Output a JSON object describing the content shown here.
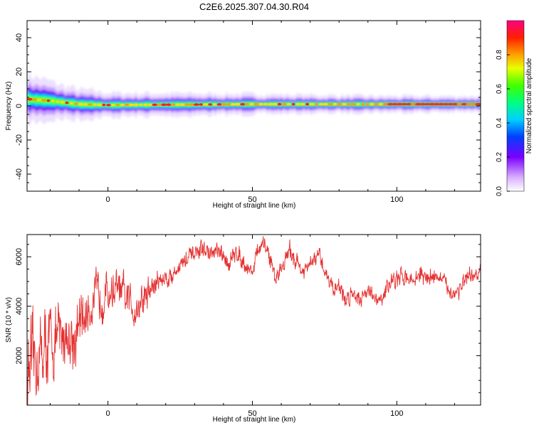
{
  "colors": {
    "snr_line": "#e53030",
    "frame": "#000000",
    "background": "#ffffff"
  },
  "chart_data": [
    {
      "type": "heatmap",
      "title": "C2E6.2025.307.04.30.R04",
      "xlabel": "Height of straight line (km)",
      "ylabel": "Frequency (Hz)",
      "xlim": [
        -28,
        129
      ],
      "ylim": [
        -50,
        50
      ],
      "xticks": [
        0,
        50,
        100
      ],
      "yticks": [
        -40,
        -20,
        0,
        20,
        40
      ],
      "colorbar": {
        "label": "Normalized spectral amplitude",
        "range": [
          0,
          1
        ],
        "ticks": [
          "0.0",
          "0.2",
          "0.4",
          "0.6",
          "0.8"
        ]
      },
      "band": {
        "description": "spectral energy concentrated near 0 Hz",
        "center_hz": [
          [
            -28,
            4
          ],
          [
            -20,
            3
          ],
          [
            -10,
            1
          ],
          [
            0,
            0.5
          ],
          [
            50,
            1
          ],
          [
            100,
            1
          ],
          [
            129,
            1
          ]
        ],
        "halfwidth_hz": [
          [
            -28,
            6
          ],
          [
            -15,
            4
          ],
          [
            0,
            3
          ],
          [
            50,
            2.5
          ],
          [
            95,
            2
          ],
          [
            129,
            2
          ]
        ]
      }
    },
    {
      "type": "line",
      "title": "",
      "xlabel": "Height of straight line (km)",
      "ylabel": "SNR (10 * v/v)",
      "xlim": [
        -28,
        129
      ],
      "ylim": [
        0,
        6900
      ],
      "xticks": [
        0,
        50,
        100
      ],
      "yticks": [
        2000,
        4000,
        6000
      ],
      "series": [
        {
          "name": "SNR",
          "trend_x": [
            -28,
            -25,
            -22,
            -18,
            -15,
            -12,
            -10,
            -7,
            -5,
            -2,
            0,
            3,
            5,
            8,
            10,
            12,
            15,
            18,
            22,
            25,
            30,
            33,
            36,
            38,
            40,
            42,
            45,
            48,
            50,
            52,
            55,
            58,
            60,
            63,
            65,
            68,
            70,
            73,
            75,
            78,
            80,
            82,
            85,
            88,
            90,
            93,
            95,
            98,
            100,
            103,
            105,
            108,
            110,
            113,
            115,
            118,
            120,
            122,
            125,
            129
          ],
          "trend_y": [
            1200,
            1800,
            2300,
            2600,
            2900,
            2700,
            3100,
            3800,
            4300,
            4500,
            4500,
            4700,
            4400,
            4100,
            3900,
            4300,
            4700,
            5100,
            5200,
            5700,
            6100,
            6300,
            6100,
            6200,
            5900,
            5800,
            6200,
            5600,
            5400,
            6300,
            6400,
            5100,
            5600,
            6200,
            5900,
            5300,
            5700,
            6000,
            5500,
            4700,
            4900,
            4200,
            4600,
            4300,
            4800,
            4100,
            4300,
            5100,
            5000,
            5300,
            5000,
            5300,
            5100,
            5300,
            5100,
            4700,
            4500,
            4800,
            5100,
            5300
          ],
          "noise_amplitude_x": [
            -28,
            -12,
            -5,
            10,
            20,
            129
          ],
          "noise_amplitude_y": [
            1800,
            1400,
            1000,
            900,
            400,
            380
          ]
        }
      ]
    }
  ]
}
